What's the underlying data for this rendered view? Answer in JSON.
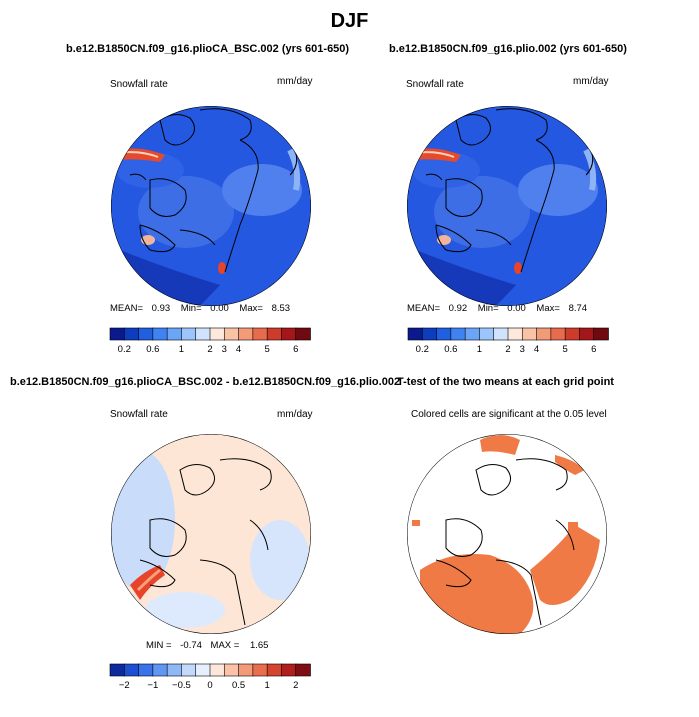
{
  "figure": {
    "season_title": "DJF",
    "colors": {
      "ocean_blue": "#1a4fd6",
      "sea_light": "#4a86e8",
      "land_blue": "#3366dd",
      "hot": "#e8442a",
      "sig": "#f07a45"
    }
  },
  "chart_data": [
    {
      "type": "heatmap",
      "panel": "top-left",
      "title": "b.e12.B1850CN.f09_g16.plioCA_BSC.002 (yrs 601-650)",
      "variable_label": "Snowfall rate",
      "units_label": "mm/day",
      "stats": {
        "mean_label": "MEAN=",
        "mean": "0.93",
        "min_label": "Min=",
        "min": "0.00",
        "max_label": "Max=",
        "max": "8.53"
      },
      "colorbar_ticks": [
        "0.2",
        "0.6",
        "1",
        "2",
        "3",
        "4",
        "5",
        "6"
      ],
      "colorbar_colors": [
        "#0a1a8c",
        "#0d3dbf",
        "#1f5fe0",
        "#3f83f2",
        "#6aa5f7",
        "#9cc6fb",
        "#cfe3fd",
        "#fde8dc",
        "#f9c3a6",
        "#f39a76",
        "#e76b4c",
        "#cf3b2a",
        "#a5161b",
        "#6e0a10"
      ]
    },
    {
      "type": "heatmap",
      "panel": "top-right",
      "title": "b.e12.B1850CN.f09_g16.plio.002 (yrs 601-650)",
      "variable_label": "Snowfall rate",
      "units_label": "mm/day",
      "stats": {
        "mean_label": "MEAN=",
        "mean": "0.92",
        "min_label": "Min=",
        "min": "0.00",
        "max_label": "Max=",
        "max": "8.74"
      },
      "colorbar_ticks": [
        "0.2",
        "0.6",
        "1",
        "2",
        "3",
        "4",
        "5",
        "6"
      ],
      "colorbar_colors": [
        "#0a1a8c",
        "#0d3dbf",
        "#1f5fe0",
        "#3f83f2",
        "#6aa5f7",
        "#9cc6fb",
        "#cfe3fd",
        "#fde8dc",
        "#f9c3a6",
        "#f39a76",
        "#e76b4c",
        "#cf3b2a",
        "#a5161b",
        "#6e0a10"
      ]
    },
    {
      "type": "heatmap",
      "panel": "bottom-left",
      "title": "b.e12.B1850CN.f09_g16.plioCA_BSC.002 - b.e12.B1850CN.f09_g16.plio.002",
      "variable_label": "Snowfall rate",
      "units_label": "mm/day",
      "stats": {
        "min_label": "MIN =",
        "min": "-0.74",
        "max_label": "MAX =",
        "max": "1.65"
      },
      "colorbar_ticks": [
        "−2",
        "−1",
        "−0.5",
        "0",
        "0.5",
        "1",
        "2"
      ],
      "colorbar_colors": [
        "#0d2a9e",
        "#1e4fd2",
        "#3a72ea",
        "#6197f2",
        "#8fb8f7",
        "#c2d9fb",
        "#e6effd",
        "#fde7db",
        "#fac3a7",
        "#f39b78",
        "#e96e4f",
        "#d4442f",
        "#b01e1d",
        "#7f0e12"
      ]
    },
    {
      "type": "heatmap",
      "panel": "bottom-right",
      "title": "T-test of the two means at each grid point",
      "variable_label": "Colored cells are significant at the 0.05 level"
    }
  ]
}
